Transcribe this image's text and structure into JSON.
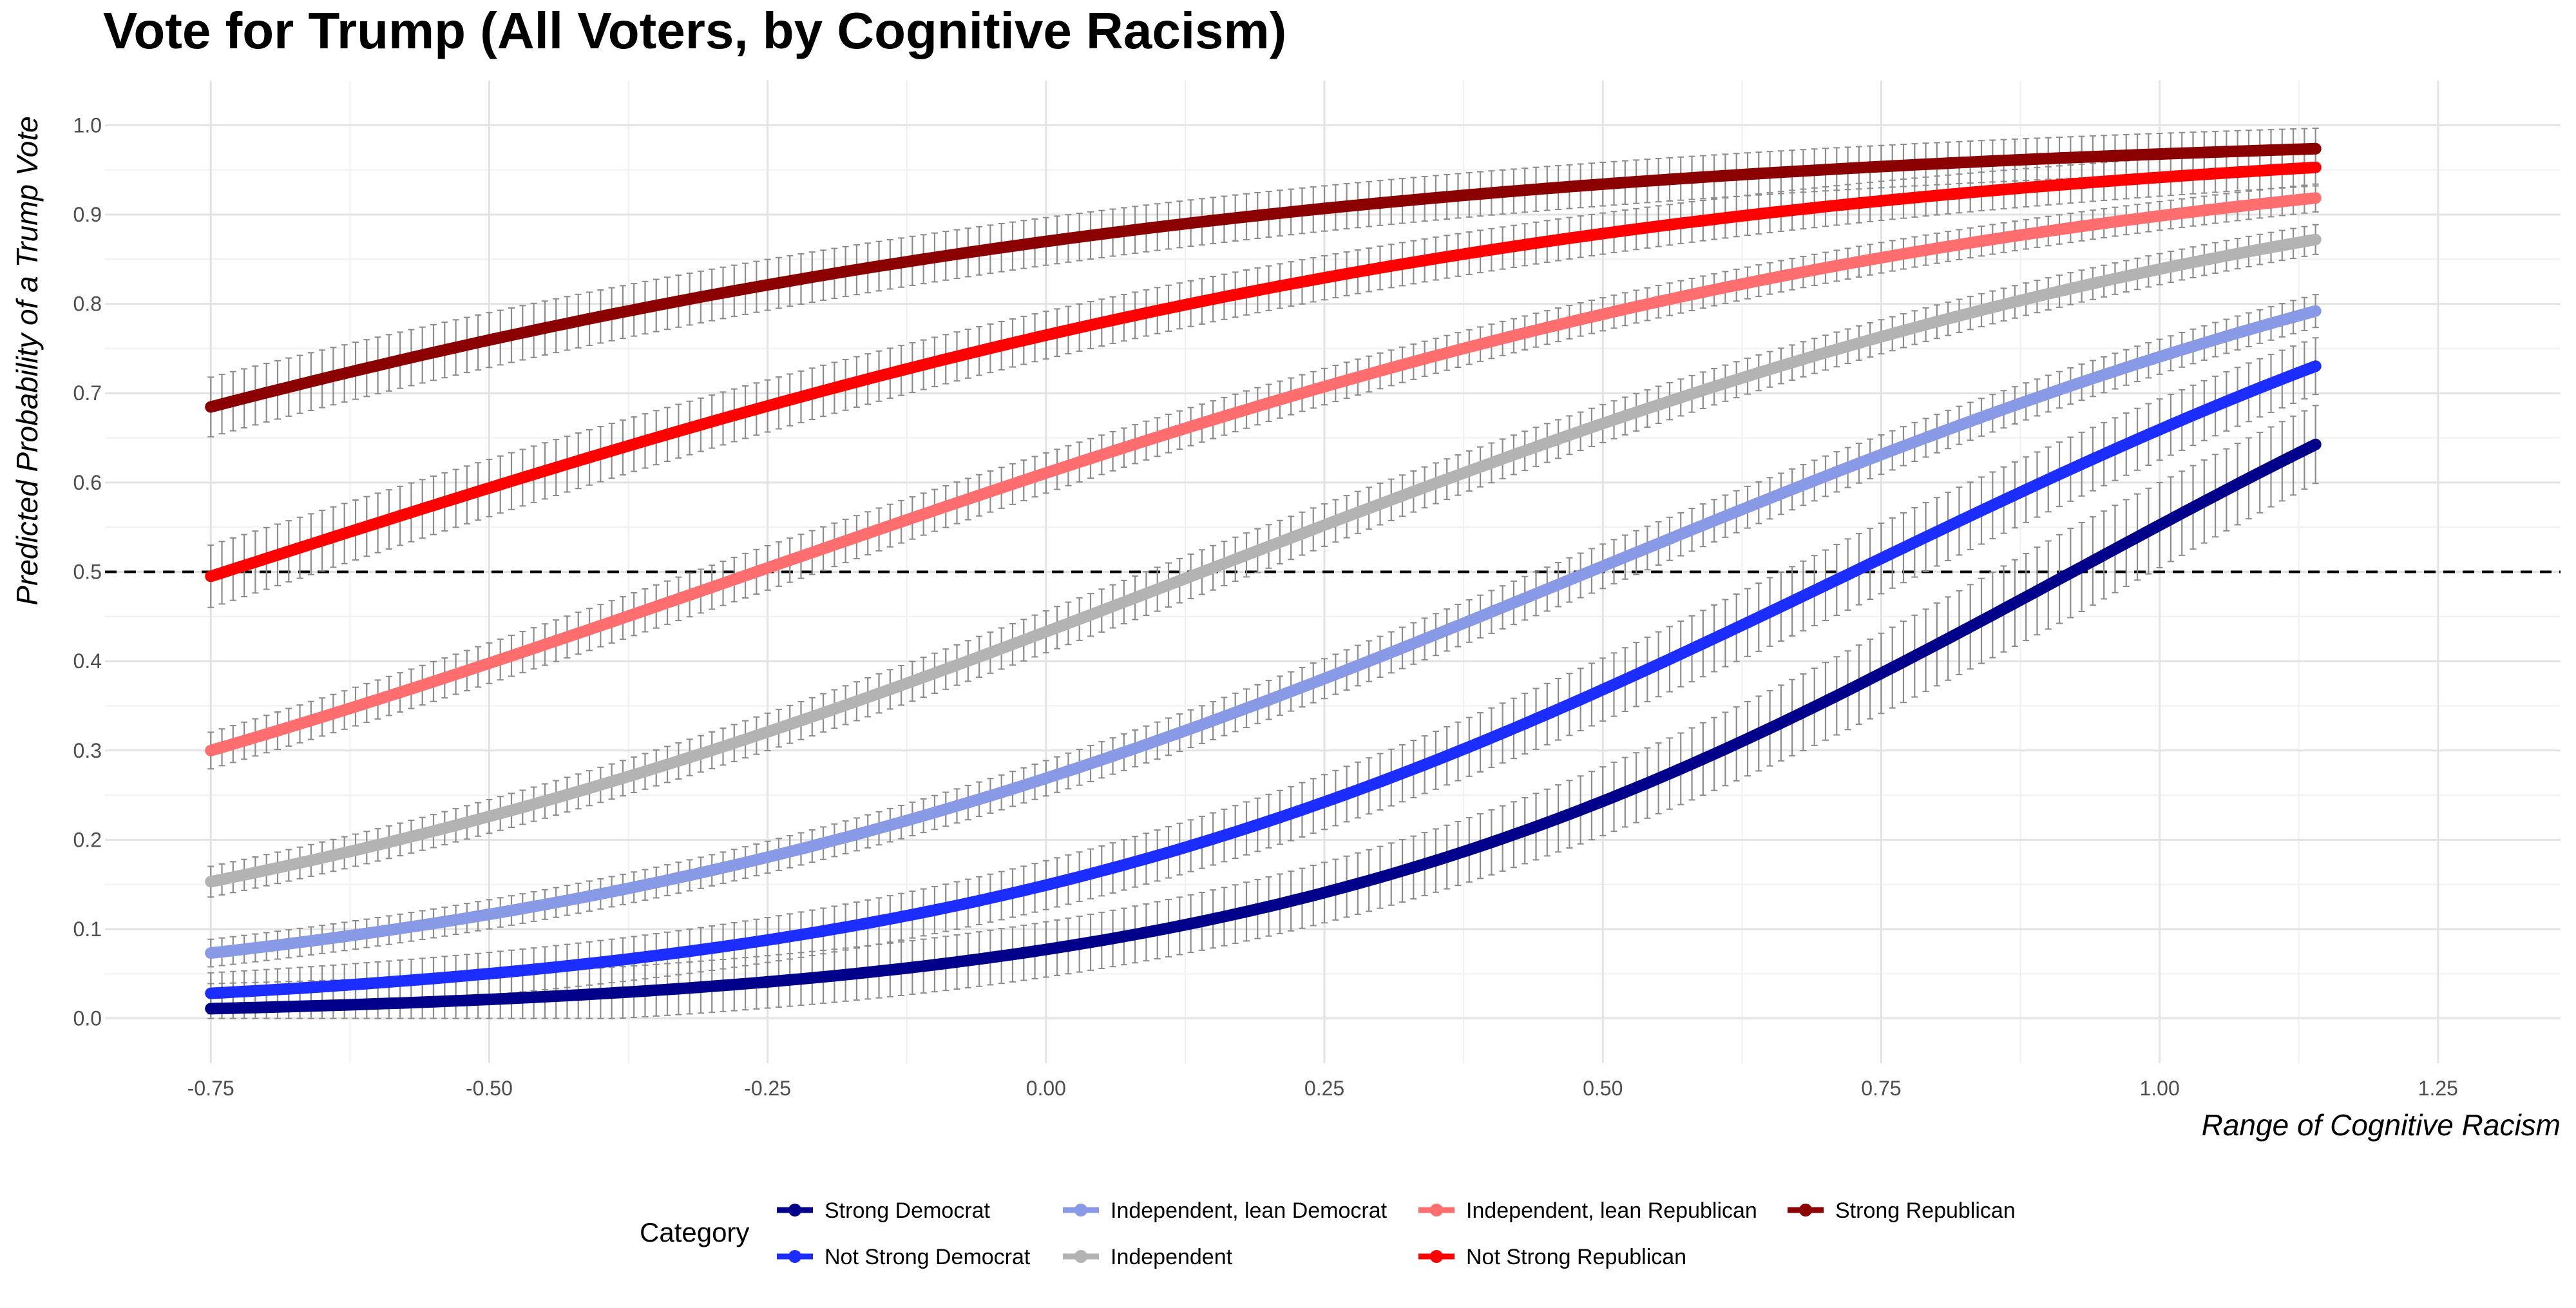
{
  "chart_data": {
    "type": "line",
    "title": "Vote for Trump (All Voters, by Cognitive Racism)",
    "xlabel": "Range of Cognitive Racism",
    "ylabel": "Predicted Probability of a Trump Vote",
    "xlim": [
      -0.845,
      1.36
    ],
    "ylim": [
      -0.05,
      1.05
    ],
    "x_ticks": [
      "-0.75",
      "-0.50",
      "-0.25",
      "0.00",
      "0.25",
      "0.50",
      "0.75",
      "1.00",
      "1.25"
    ],
    "y_ticks": [
      "0.0",
      "0.1",
      "0.2",
      "0.3",
      "0.4",
      "0.5",
      "0.6",
      "0.7",
      "0.8",
      "0.9",
      "1.0"
    ],
    "reference_line_y": 0.5,
    "x_range": [
      -0.75,
      1.14
    ],
    "grid": true,
    "error_bars": true,
    "legend": {
      "title": "Category",
      "placement": "bottom"
    },
    "series": [
      {
        "name": "Strong Democrat",
        "color": "#00008b",
        "logit_at_zero": -2.48,
        "slope": 2.69,
        "ci_width": 0.05
      },
      {
        "name": "Not Strong Democrat",
        "color": "#1c2eff",
        "logit_at_zero": -1.74,
        "slope": 2.4,
        "ci_width": 0.04
      },
      {
        "name": "Independent, lean Democrat",
        "color": "#8899e6",
        "logit_at_zero": -1.0,
        "slope": 2.05,
        "ci_width": 0.025
      },
      {
        "name": "Independent",
        "color": "#b3b3b3",
        "logit_at_zero": -0.27,
        "slope": 1.92,
        "ci_width": 0.025
      },
      {
        "name": "Independent, lean Republican",
        "color": "#ff6e6e",
        "logit_at_zero": 0.45,
        "slope": 1.73,
        "ci_width": 0.025
      },
      {
        "name": "Not Strong Republican",
        "color": "#ff0000",
        "logit_at_zero": 1.18,
        "slope": 1.6,
        "ci_width": 0.035
      },
      {
        "name": "Strong Republican",
        "color": "#8b0000",
        "logit_at_zero": 1.9,
        "slope": 1.5,
        "ci_width": 0.04
      }
    ]
  }
}
